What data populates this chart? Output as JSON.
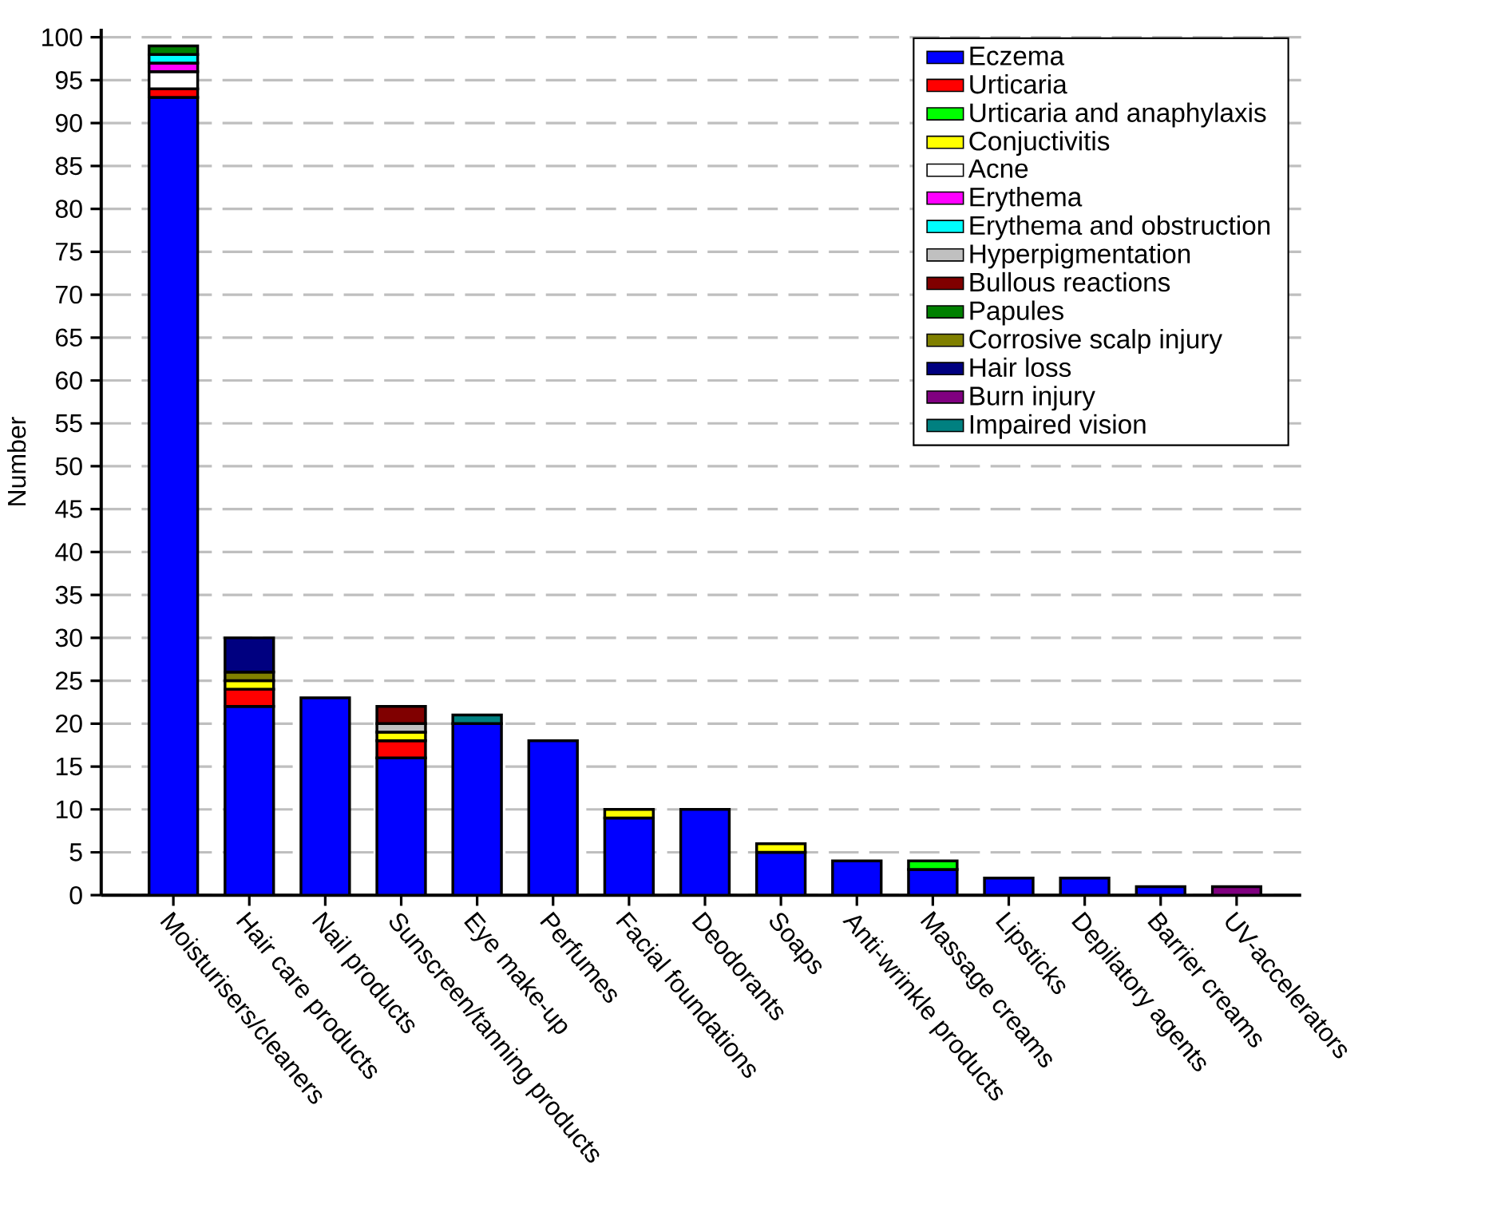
{
  "chart_data": {
    "type": "bar",
    "stacked": true,
    "ylabel": "Number",
    "categories": [
      "Moisturisers/cleaners",
      "Hair care products",
      "Nail products",
      "Sunscreen/tanning products",
      "Eye make-up",
      "Perfumes",
      "Facial foundations",
      "Deodorants",
      "Soaps",
      "Anti-wrinkle products",
      "Massage creams",
      "Lipsticks",
      "Depilatory agents",
      "Barrier creams",
      "UV-accelerators"
    ],
    "series": [
      {
        "name": "Eczema",
        "color": "#0000ff",
        "values": [
          93,
          22,
          23,
          16,
          20,
          18,
          9,
          10,
          5,
          4,
          3,
          2,
          2,
          1,
          null
        ]
      },
      {
        "name": "Urticaria",
        "color": "#ff0000",
        "values": [
          1,
          2,
          null,
          2,
          null,
          null,
          null,
          null,
          null,
          null,
          null,
          null,
          null,
          null,
          null
        ]
      },
      {
        "name": "Urticaria and anaphylaxis",
        "color": "#00ff00",
        "values": [
          null,
          null,
          null,
          null,
          null,
          null,
          null,
          null,
          null,
          null,
          1,
          null,
          null,
          null,
          null
        ]
      },
      {
        "name": "Conjuctivitis",
        "color": "#ffff00",
        "values": [
          null,
          1,
          null,
          1,
          null,
          null,
          1,
          null,
          1,
          null,
          null,
          null,
          null,
          null,
          null
        ]
      },
      {
        "name": "Acne",
        "color": "#ffffff",
        "values": [
          2,
          null,
          null,
          null,
          null,
          null,
          null,
          null,
          null,
          null,
          null,
          null,
          null,
          null,
          null
        ]
      },
      {
        "name": "Erythema",
        "color": "#ff00ff",
        "values": [
          1,
          null,
          null,
          null,
          null,
          null,
          null,
          null,
          null,
          null,
          null,
          null,
          null,
          null,
          null
        ]
      },
      {
        "name": "Erythema and obstruction",
        "color": "#00ffff",
        "values": [
          1,
          null,
          null,
          null,
          null,
          null,
          null,
          null,
          null,
          null,
          null,
          null,
          null,
          null,
          null
        ]
      },
      {
        "name": "Hyperpigmentation",
        "color": "#c0c0c0",
        "values": [
          null,
          null,
          null,
          1,
          null,
          null,
          null,
          null,
          null,
          null,
          null,
          null,
          null,
          null,
          null
        ]
      },
      {
        "name": "Bullous reactions",
        "color": "#800000",
        "values": [
          null,
          null,
          null,
          2,
          null,
          null,
          null,
          null,
          null,
          null,
          null,
          null,
          null,
          null,
          null
        ]
      },
      {
        "name": "Papules",
        "color": "#008000",
        "values": [
          1,
          null,
          null,
          null,
          null,
          null,
          null,
          null,
          null,
          null,
          null,
          null,
          null,
          null,
          null
        ]
      },
      {
        "name": "Corrosive scalp injury",
        "color": "#808000",
        "values": [
          null,
          1,
          null,
          null,
          null,
          null,
          null,
          null,
          null,
          null,
          null,
          null,
          null,
          null,
          null
        ]
      },
      {
        "name": "Hair loss",
        "color": "#000080",
        "values": [
          null,
          4,
          null,
          null,
          null,
          null,
          null,
          null,
          null,
          null,
          null,
          null,
          null,
          null,
          null
        ]
      },
      {
        "name": "Burn injury",
        "color": "#800080",
        "values": [
          null,
          null,
          null,
          null,
          null,
          null,
          null,
          null,
          null,
          null,
          null,
          null,
          null,
          null,
          1
        ]
      },
      {
        "name": "Impaired vision",
        "color": "#008080",
        "values": [
          null,
          null,
          null,
          null,
          1,
          null,
          null,
          null,
          null,
          null,
          null,
          null,
          null,
          null,
          null
        ]
      }
    ],
    "ylim": [
      0,
      101
    ],
    "yticks": [
      0,
      5,
      10,
      15,
      20,
      25,
      30,
      35,
      40,
      45,
      50,
      55,
      60,
      65,
      70,
      75,
      80,
      85,
      90,
      95,
      100
    ],
    "grid": "y",
    "legend": "top right"
  }
}
